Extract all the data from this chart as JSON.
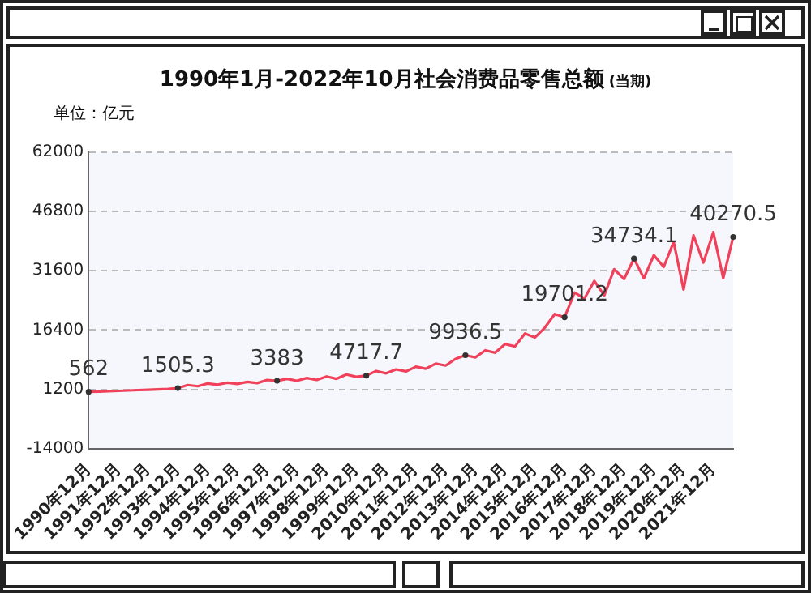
{
  "chart_data": {
    "type": "line",
    "title": "1990年1月-2022年10月社会消费品零售总额",
    "subtitle": "(当期)",
    "ylabel": "单位：亿元",
    "categories": [
      "1990年12月",
      null,
      null,
      "1991年12月",
      null,
      null,
      "1992年12月",
      null,
      null,
      "1993年12月",
      null,
      null,
      "1994年12月",
      null,
      null,
      "1995年12月",
      null,
      null,
      "1996年12月",
      null,
      null,
      "1997年12月",
      null,
      null,
      "1998年12月",
      null,
      null,
      "1999年12月",
      null,
      null,
      "2010年12月",
      null,
      null,
      "2011年12月",
      null,
      null,
      "2012年12月",
      null,
      null,
      "2013年12月",
      null,
      null,
      "2014年12月",
      null,
      null,
      "2015年12月",
      null,
      null,
      "2016年12月",
      null,
      null,
      "2017年12月",
      null,
      null,
      "2018年12月",
      null,
      null,
      "2019年12月",
      null,
      null,
      "2020年12月",
      null,
      null,
      "2021年12月",
      null,
      null
    ],
    "series": [
      {
        "color": "#f0405a",
        "values": [
          562,
          600,
          700,
          800,
          900,
          1000,
          1100,
          1200,
          1300,
          1505.3,
          2300,
          2000,
          2700,
          2400,
          2900,
          2600,
          3100,
          2800,
          3600,
          3383,
          3900,
          3400,
          4100,
          3600,
          4500,
          3900,
          5000,
          4400,
          4717.7,
          5900,
          5300,
          6300,
          5800,
          7000,
          6500,
          7800,
          7300,
          9000,
          9936.5,
          9400,
          11200,
          10600,
          12800,
          12200,
          15500,
          14500,
          17000,
          20500,
          19701.2,
          26000,
          24500,
          29000,
          25300,
          32000,
          29500,
          34734.1,
          29700,
          35600,
          32600,
          39000,
          26800,
          40700,
          33700,
          41500,
          29700,
          40270.5
        ],
        "value_labels": [
          "562",
          null,
          null,
          null,
          null,
          null,
          null,
          null,
          null,
          "1505.3",
          null,
          null,
          null,
          null,
          null,
          null,
          null,
          null,
          null,
          "3383",
          null,
          null,
          null,
          null,
          null,
          null,
          null,
          null,
          "4717.7",
          null,
          null,
          null,
          null,
          null,
          null,
          null,
          null,
          null,
          "9936.5",
          null,
          null,
          null,
          null,
          null,
          null,
          null,
          null,
          null,
          "19701.2",
          null,
          null,
          null,
          null,
          null,
          null,
          "34734.1",
          null,
          null,
          null,
          null,
          null,
          null,
          null,
          null,
          null,
          "40270.5"
        ]
      }
    ],
    "ylim": [
      -14000,
      62000
    ],
    "yticks": [
      -14000,
      1200,
      16400,
      31600,
      46800,
      62000
    ],
    "grid": "y",
    "line_style": "solid",
    "legend": false
  }
}
